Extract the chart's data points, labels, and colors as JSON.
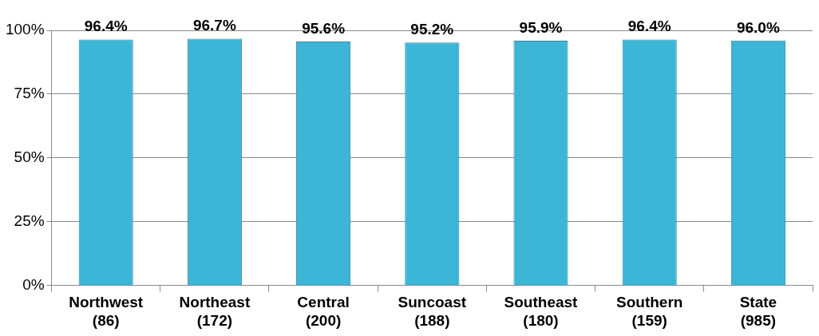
{
  "chart_data": {
    "type": "bar",
    "categories": [
      "Northwest\n(86)",
      "Northeast\n(172)",
      "Central\n(200)",
      "Suncoast\n(188)",
      "Southeast\n(180)",
      "Southern\n(159)",
      "State\n(985)"
    ],
    "values": [
      96.4,
      96.7,
      95.6,
      95.2,
      95.9,
      96.4,
      96.0
    ],
    "value_labels": [
      "96.4%",
      "96.7%",
      "95.6%",
      "95.2%",
      "95.9%",
      "96.4%",
      "96.0%"
    ],
    "color": "#3db5d6",
    "ylim": [
      0,
      100
    ],
    "yticks": [
      {
        "value": 0,
        "label": "0%"
      },
      {
        "value": 25,
        "label": "25%"
      },
      {
        "value": 50,
        "label": "50%"
      },
      {
        "value": 75,
        "label": "75%"
      },
      {
        "value": 100,
        "label": "100%"
      }
    ],
    "grid": "y",
    "legend": false
  }
}
